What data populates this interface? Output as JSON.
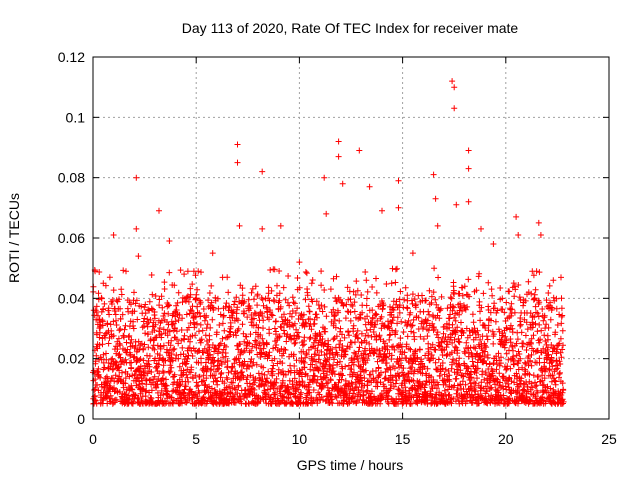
{
  "chart_data": {
    "type": "scatter",
    "title": "Day 113 of 2020, Rate Of TEC Index for receiver mate",
    "xlabel": "GPS time / hours",
    "ylabel": "ROTI / TECUs",
    "xlim": [
      0,
      25
    ],
    "ylim": [
      0,
      0.12
    ],
    "xticks": [
      0,
      5,
      10,
      15,
      20,
      25
    ],
    "xtick_labels": [
      "0",
      "5",
      "10",
      "15",
      "20",
      "25"
    ],
    "yticks": [
      0,
      0.02,
      0.04,
      0.06,
      0.08,
      0.1,
      0.12
    ],
    "ytick_labels": [
      "0",
      "0.02",
      "0.04",
      "0.06",
      "0.08",
      "0.1",
      "0.12"
    ],
    "grid": true,
    "marker": "+",
    "color": "#ff0000",
    "series": [
      {
        "x_range": [
          0,
          22.8
        ],
        "typical_range": [
          0.005,
          0.045
        ],
        "notable_points": [
          {
            "x": 0.1,
            "y": 0.049
          },
          {
            "x": 0.5,
            "y": 0.045
          },
          {
            "x": 1.0,
            "y": 0.061
          },
          {
            "x": 1.6,
            "y": 0.049
          },
          {
            "x": 2.1,
            "y": 0.08
          },
          {
            "x": 2.1,
            "y": 0.063
          },
          {
            "x": 2.2,
            "y": 0.054
          },
          {
            "x": 3.2,
            "y": 0.069
          },
          {
            "x": 3.7,
            "y": 0.059
          },
          {
            "x": 4.6,
            "y": 0.049
          },
          {
            "x": 5.8,
            "y": 0.055
          },
          {
            "x": 6.5,
            "y": 0.047
          },
          {
            "x": 7.0,
            "y": 0.091
          },
          {
            "x": 7.0,
            "y": 0.085
          },
          {
            "x": 7.1,
            "y": 0.064
          },
          {
            "x": 8.2,
            "y": 0.082
          },
          {
            "x": 8.2,
            "y": 0.063
          },
          {
            "x": 9.1,
            "y": 0.064
          },
          {
            "x": 10.0,
            "y": 0.052
          },
          {
            "x": 10.6,
            "y": 0.045
          },
          {
            "x": 11.2,
            "y": 0.08
          },
          {
            "x": 11.3,
            "y": 0.068
          },
          {
            "x": 11.9,
            "y": 0.092
          },
          {
            "x": 11.9,
            "y": 0.087
          },
          {
            "x": 12.1,
            "y": 0.078
          },
          {
            "x": 12.9,
            "y": 0.089
          },
          {
            "x": 13.4,
            "y": 0.077
          },
          {
            "x": 14.0,
            "y": 0.069
          },
          {
            "x": 14.8,
            "y": 0.079
          },
          {
            "x": 14.8,
            "y": 0.07
          },
          {
            "x": 15.5,
            "y": 0.055
          },
          {
            "x": 16.5,
            "y": 0.081
          },
          {
            "x": 16.6,
            "y": 0.073
          },
          {
            "x": 16.7,
            "y": 0.064
          },
          {
            "x": 17.4,
            "y": 0.112
          },
          {
            "x": 17.5,
            "y": 0.11
          },
          {
            "x": 17.5,
            "y": 0.103
          },
          {
            "x": 17.6,
            "y": 0.071
          },
          {
            "x": 18.2,
            "y": 0.089
          },
          {
            "x": 18.2,
            "y": 0.083
          },
          {
            "x": 18.2,
            "y": 0.072
          },
          {
            "x": 18.8,
            "y": 0.063
          },
          {
            "x": 19.4,
            "y": 0.058
          },
          {
            "x": 20.5,
            "y": 0.067
          },
          {
            "x": 20.6,
            "y": 0.061
          },
          {
            "x": 21.6,
            "y": 0.065
          },
          {
            "x": 21.7,
            "y": 0.061
          },
          {
            "x": 22.3,
            "y": 0.046
          },
          {
            "x": 22.7,
            "y": 0.04
          }
        ]
      }
    ]
  }
}
